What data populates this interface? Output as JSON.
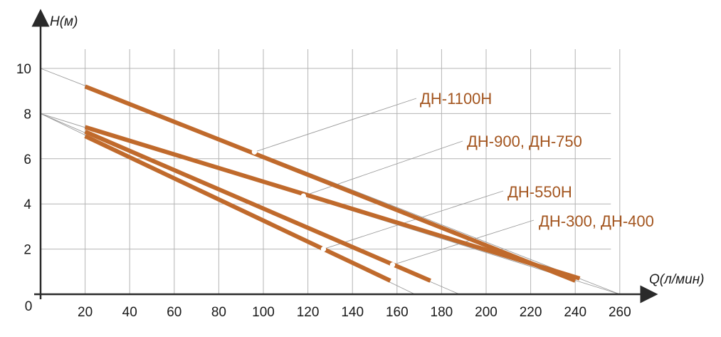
{
  "chart_data": {
    "type": "line",
    "xlabel": "Q(л/мин)",
    "ylabel": "H(м)",
    "origin_label": "0",
    "xlim": [
      0,
      260
    ],
    "ylim": [
      0,
      11
    ],
    "x_ticks": [
      20,
      40,
      60,
      80,
      100,
      120,
      140,
      160,
      180,
      200,
      220,
      240,
      260
    ],
    "y_ticks": [
      2,
      4,
      6,
      8,
      10
    ],
    "grid": true,
    "series": [
      {
        "name": "ДН-1100Н",
        "x": [
          20,
          240
        ],
        "y": [
          9.2,
          0.6
        ],
        "marker": [
          96,
          6.3
        ],
        "extrapolated_x": [
          0,
          260
        ],
        "extrapolated_y": [
          10,
          0
        ]
      },
      {
        "name": "ДН-900, ДН-750",
        "x": [
          20,
          242
        ],
        "y": [
          7.4,
          0.7
        ],
        "marker": [
          118,
          4.35
        ],
        "extrapolated_x": [
          0,
          260
        ],
        "extrapolated_y": [
          8,
          0
        ]
      },
      {
        "name": "ДН-550Н",
        "x": [
          20,
          157
        ],
        "y": [
          7.0,
          0.6
        ],
        "marker": [
          127,
          2.0
        ],
        "extrapolated_x": [
          0,
          168
        ],
        "extrapolated_y": [
          8,
          0
        ]
      },
      {
        "name": "ДН-300, ДН-400",
        "x": [
          20,
          175
        ],
        "y": [
          7.2,
          0.6
        ],
        "marker": [
          158,
          1.3
        ],
        "extrapolated_x": [
          0,
          188
        ],
        "extrapolated_y": [
          8,
          0
        ]
      }
    ],
    "colors": {
      "curve": "#c06a2c",
      "axis": "#2a2a2a",
      "grid": "#b4b4b4",
      "label": "#a3551f"
    }
  }
}
